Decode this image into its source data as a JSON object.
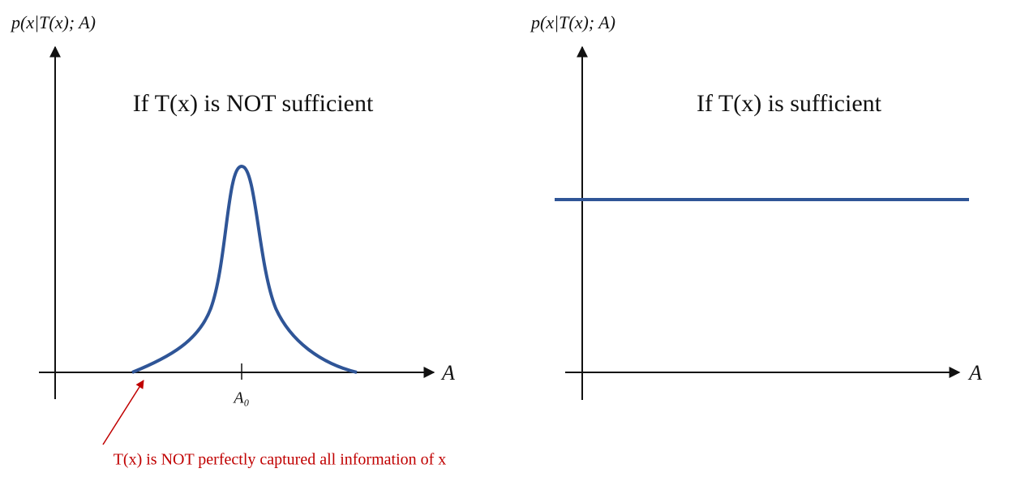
{
  "left": {
    "y_label": "p(x|T(x); A)",
    "title": "If T(x) is NOT sufficient",
    "x_label": "A",
    "tick_label": "A₀",
    "annotation": "T(x) is NOT perfectly captured all information of x"
  },
  "right": {
    "y_label": "p(x|T(x); A)",
    "title": "If T(x) is sufficient",
    "x_label": "A"
  }
}
